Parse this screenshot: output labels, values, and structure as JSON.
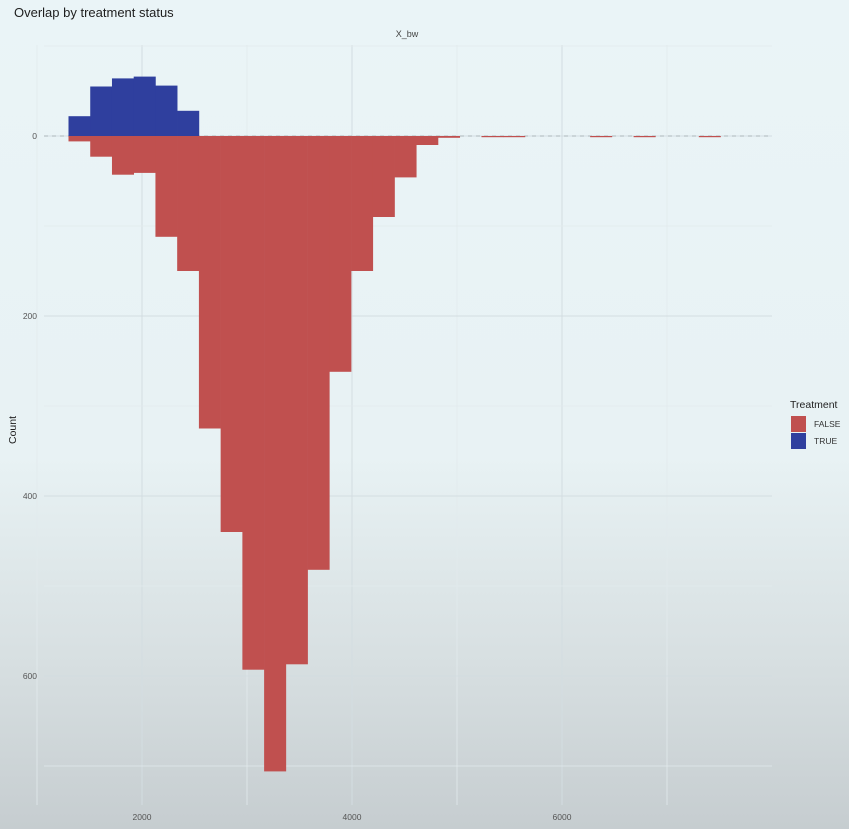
{
  "chart_data": {
    "type": "bar",
    "title": "Overlap by treatment status",
    "facet_label": "X_bw",
    "xlabel": "",
    "ylabel": "Count",
    "x_ticks": [
      2000,
      4000,
      6000
    ],
    "y_ticks": [
      0,
      200,
      400,
      600
    ],
    "xlim": [
      1300,
      7800
    ],
    "ylim": [
      -70,
      710
    ],
    "y_orientation": "positive values downward; TRUE counts drawn above zero",
    "grid": true,
    "dashed_zero_line": true,
    "bin_width": 207,
    "legend": {
      "title": "Treatment",
      "position": "right"
    },
    "series": [
      {
        "name": "FALSE",
        "color": "#c0504f",
        "direction": "down",
        "bins": [
          {
            "x0": 1300,
            "count": 6
          },
          {
            "x0": 1507,
            "count": 23
          },
          {
            "x0": 1714,
            "count": 43
          },
          {
            "x0": 1921,
            "count": 41
          },
          {
            "x0": 2128,
            "count": 112
          },
          {
            "x0": 2335,
            "count": 150
          },
          {
            "x0": 2542,
            "count": 325
          },
          {
            "x0": 2749,
            "count": 440
          },
          {
            "x0": 2956,
            "count": 593
          },
          {
            "x0": 3163,
            "count": 706
          },
          {
            "x0": 3370,
            "count": 587
          },
          {
            "x0": 3577,
            "count": 482
          },
          {
            "x0": 3784,
            "count": 262
          },
          {
            "x0": 3991,
            "count": 150
          },
          {
            "x0": 4198,
            "count": 90
          },
          {
            "x0": 4405,
            "count": 46
          },
          {
            "x0": 4612,
            "count": 10
          },
          {
            "x0": 4819,
            "count": 2
          },
          {
            "x0": 5233,
            "count": 1
          },
          {
            "x0": 5440,
            "count": 1
          },
          {
            "x0": 6268,
            "count": 1
          },
          {
            "x0": 6682,
            "count": 1
          },
          {
            "x0": 7303,
            "count": 1
          }
        ]
      },
      {
        "name": "TRUE",
        "color": "#2f3f9e",
        "direction": "up",
        "bins": [
          {
            "x0": 1300,
            "count": 22
          },
          {
            "x0": 1507,
            "count": 55
          },
          {
            "x0": 1714,
            "count": 64
          },
          {
            "x0": 1921,
            "count": 66
          },
          {
            "x0": 2128,
            "count": 56
          },
          {
            "x0": 2335,
            "count": 28
          }
        ]
      }
    ]
  }
}
